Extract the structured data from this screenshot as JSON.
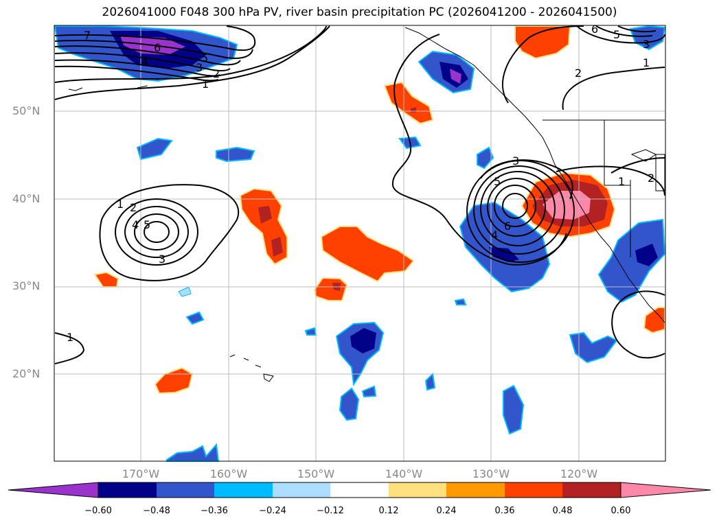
{
  "title": "2026041000 F048 300 hPa PV, river basin precipitation PC (2026041200 - 2026041500)",
  "lat_labels": [
    "50°N",
    "40°N",
    "30°N",
    "20°N"
  ],
  "lon_labels": [
    "170°W",
    "160°W",
    "150°W",
    "140°W",
    "130°W",
    "120°W"
  ],
  "contour_labels": [
    "7",
    "6",
    "5",
    "4",
    "3",
    "2",
    "1",
    "1",
    "2",
    "4",
    "5",
    "3",
    "3",
    "5",
    "6",
    "4",
    "1",
    "2",
    "6",
    "5",
    "3",
    "1",
    "2",
    "1"
  ],
  "colorbar": {
    "ticks": [
      "−0.60",
      "−0.48",
      "−0.36",
      "−0.24",
      "−0.12",
      "0.12",
      "0.24",
      "0.36",
      "0.48",
      "0.60"
    ],
    "colors": [
      "#9933cc",
      "#000088",
      "#3355cc",
      "#00bbff",
      "#aaddff",
      "#ffffff",
      "#ffe080",
      "#ff9900",
      "#ff4000",
      "#b22222",
      "#ff88aa"
    ]
  },
  "colors": {
    "purple": "#9933cc",
    "navy": "#000088",
    "blue": "#3355cc",
    "cyan": "#00bbff",
    "lightblue": "#aaddff",
    "yellow": "#ffe080",
    "orange": "#ff9900",
    "redorange": "#ff4000",
    "darkred": "#b22222",
    "pink": "#ff88aa"
  }
}
